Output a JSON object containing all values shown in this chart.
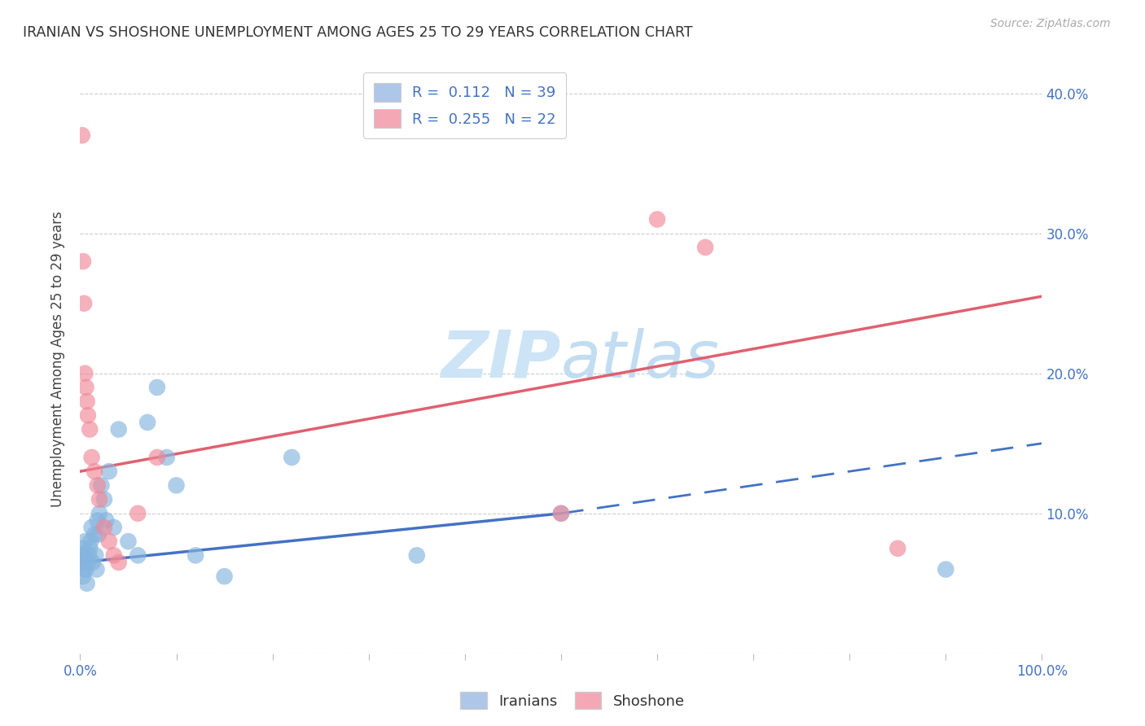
{
  "title": "IRANIAN VS SHOSHONE UNEMPLOYMENT AMONG AGES 25 TO 29 YEARS CORRELATION CHART",
  "source": "Source: ZipAtlas.com",
  "ylabel": "Unemployment Among Ages 25 to 29 years",
  "xlim": [
    0,
    1.0
  ],
  "ylim": [
    0,
    0.42
  ],
  "ytick_positions": [
    0.0,
    0.1,
    0.2,
    0.3,
    0.4
  ],
  "ytick_labels": [
    "",
    "10.0%",
    "20.0%",
    "30.0%",
    "40.0%"
  ],
  "xtick_positions": [
    0.0,
    0.1,
    0.2,
    0.3,
    0.4,
    0.5,
    0.6,
    0.7,
    0.8,
    0.9,
    1.0
  ],
  "xtick_labels": [
    "0.0%",
    "",
    "",
    "",
    "",
    "",
    "",
    "",
    "",
    "",
    "100.0%"
  ],
  "iranians_x": [
    0.001,
    0.002,
    0.003,
    0.003,
    0.004,
    0.005,
    0.005,
    0.006,
    0.007,
    0.008,
    0.009,
    0.01,
    0.011,
    0.012,
    0.013,
    0.015,
    0.016,
    0.017,
    0.018,
    0.019,
    0.02,
    0.022,
    0.025,
    0.027,
    0.03,
    0.035,
    0.04,
    0.05,
    0.06,
    0.07,
    0.08,
    0.09,
    0.1,
    0.12,
    0.15,
    0.22,
    0.35,
    0.5,
    0.9
  ],
  "iranians_y": [
    0.07,
    0.065,
    0.075,
    0.055,
    0.06,
    0.08,
    0.07,
    0.06,
    0.05,
    0.065,
    0.07,
    0.075,
    0.08,
    0.09,
    0.065,
    0.085,
    0.07,
    0.06,
    0.095,
    0.085,
    0.1,
    0.12,
    0.11,
    0.095,
    0.13,
    0.09,
    0.16,
    0.08,
    0.07,
    0.165,
    0.19,
    0.14,
    0.12,
    0.07,
    0.055,
    0.14,
    0.07,
    0.1,
    0.06
  ],
  "shoshone_x": [
    0.002,
    0.003,
    0.004,
    0.005,
    0.006,
    0.007,
    0.008,
    0.01,
    0.012,
    0.015,
    0.018,
    0.02,
    0.025,
    0.03,
    0.035,
    0.04,
    0.06,
    0.08,
    0.5,
    0.6,
    0.65,
    0.85
  ],
  "shoshone_y": [
    0.37,
    0.28,
    0.25,
    0.2,
    0.19,
    0.18,
    0.17,
    0.16,
    0.14,
    0.13,
    0.12,
    0.11,
    0.09,
    0.08,
    0.07,
    0.065,
    0.1,
    0.14,
    0.1,
    0.31,
    0.29,
    0.075
  ],
  "blue_scatter_color": "#85b5de",
  "pink_scatter_color": "#f08898",
  "blue_line_color": "#4472c4",
  "pink_line_color": "#e06070",
  "tick_color": "#4472c4",
  "ylabel_color": "#444444",
  "background_color": "#ffffff",
  "watermark_color": "#cce4f5",
  "R_iranian": 0.112,
  "N_iranian": 39,
  "R_shoshone": 0.255,
  "N_shoshone": 22,
  "legend_blue_color": "#aec6e8",
  "legend_pink_color": "#f4a7b5",
  "blue_line_y0": 0.065,
  "blue_line_y1": 0.1,
  "blue_line_x_solid_end": 0.5,
  "blue_line_y_dash_end": 0.15,
  "pink_line_y0": 0.13,
  "pink_line_y1": 0.255
}
